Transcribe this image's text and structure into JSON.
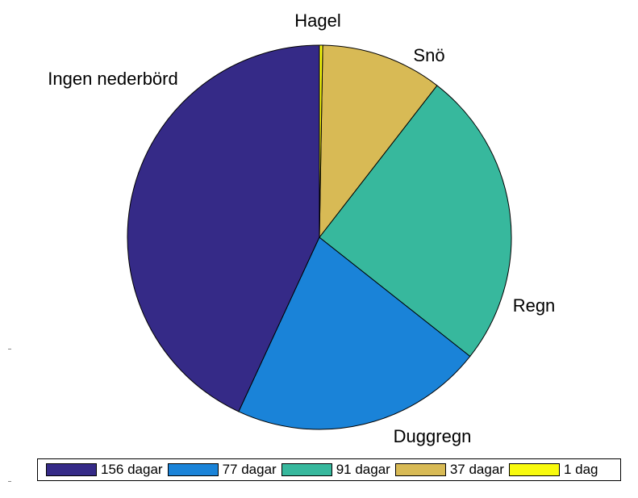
{
  "chart_data": {
    "type": "pie",
    "slices": [
      {
        "name": "Ingen nederbörd",
        "value": 156,
        "legend": "156 dagar",
        "color": "#352a87"
      },
      {
        "name": "Duggregn",
        "value": 77,
        "legend": "77 dagar",
        "color": "#1a83d8"
      },
      {
        "name": "Regn",
        "value": 91,
        "legend": "91 dagar",
        "color": "#37b89d"
      },
      {
        "name": "Snö",
        "value": 37,
        "legend": "37 dagar",
        "color": "#d8ba55"
      },
      {
        "name": "Hagel",
        "value": 1,
        "legend": "1 dag",
        "color": "#f8fa0d"
      }
    ],
    "start": "top",
    "direction": "counterclockwise",
    "legend_position": "bottom"
  }
}
